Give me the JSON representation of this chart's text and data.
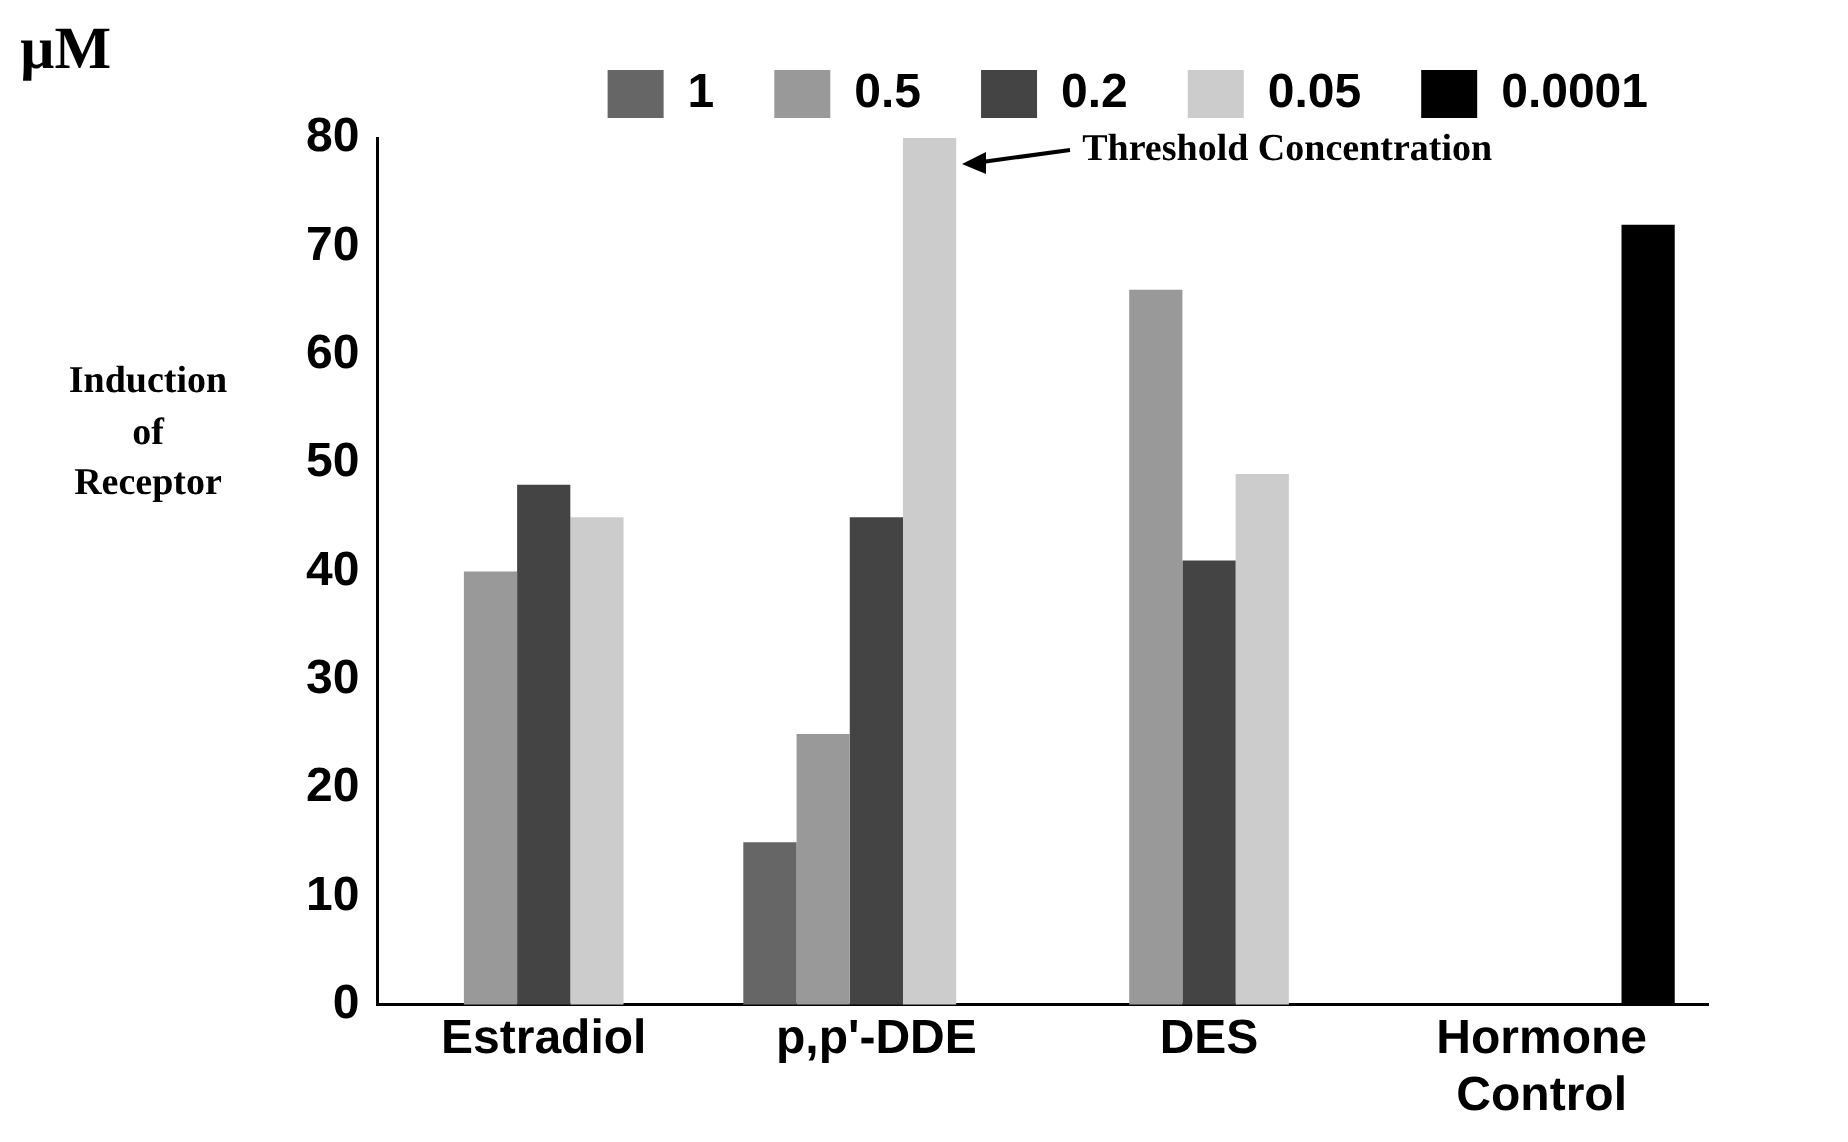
{
  "chart_data": {
    "type": "bar",
    "ylabel": "Induction of Receptor",
    "legend_title": "µM",
    "legend": "top",
    "grid": false,
    "categories": [
      "Estradiol",
      "p,p'-DDE",
      "DES",
      "Hormone Control"
    ],
    "series": [
      {
        "name": "1",
        "color": "#666666",
        "values": [
          null,
          15,
          null,
          null
        ]
      },
      {
        "name": "0.5",
        "color": "#999999",
        "values": [
          40,
          25,
          66,
          null
        ]
      },
      {
        "name": "0.2",
        "color": "#444444",
        "values": [
          48,
          45,
          41,
          null
        ]
      },
      {
        "name": "0.05",
        "color": "#cccccc",
        "values": [
          45,
          80,
          49,
          null
        ]
      },
      {
        "name": "0.0001",
        "color": "#000000",
        "values": [
          null,
          null,
          null,
          72
        ]
      }
    ],
    "ylim": [
      0,
      80
    ],
    "yticks": [
      0,
      10,
      20,
      30,
      40,
      50,
      60,
      70,
      80
    ],
    "annotations": [
      "Threshold Concentration"
    ]
  }
}
